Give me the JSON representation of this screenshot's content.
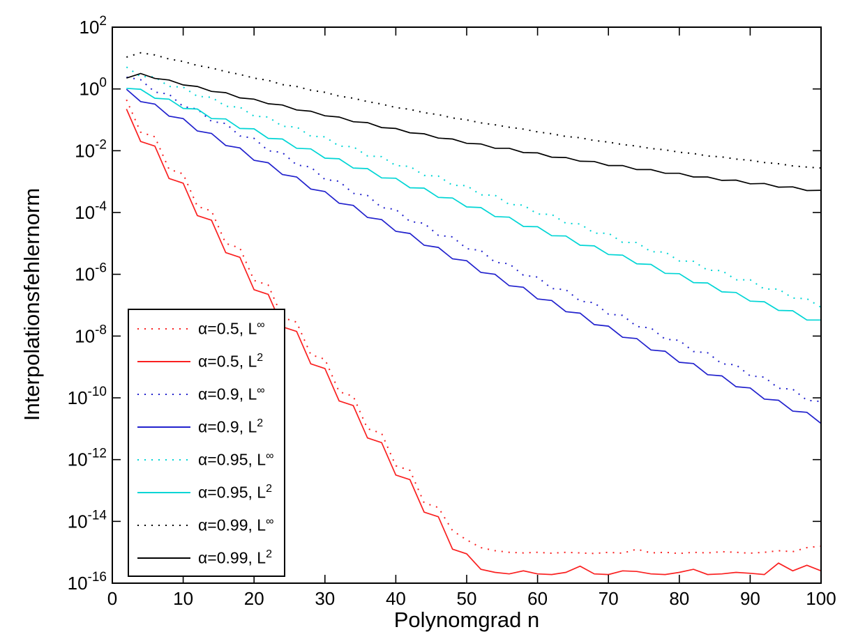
{
  "figure": {
    "background": "#ffffff",
    "axis_color": "#000000"
  },
  "chart_data": {
    "type": "line",
    "title": "",
    "xlabel": "Polynomgrad n",
    "ylabel": "Interpolationsfehlernorm",
    "x_range": [
      0,
      100
    ],
    "y_log_range": [
      -16,
      2
    ],
    "x_ticks": [
      0,
      10,
      20,
      30,
      40,
      50,
      60,
      70,
      80,
      90,
      100
    ],
    "y_tick_exponents": [
      2,
      0,
      -2,
      -4,
      -6,
      -8,
      -10,
      -12,
      -14,
      -16
    ],
    "grid": false,
    "legend_position": "lower-left",
    "n_start": 2,
    "n_step": 2,
    "series": [
      {
        "id": "alpha05-linf",
        "legend_base": "α=0.5, L",
        "legend_sup": "∞",
        "color": "#fa2020",
        "style": "dotted",
        "log10_values": [
          -0.35,
          -1.4,
          -1.55,
          -2.6,
          -2.75,
          -3.8,
          -3.95,
          -5.0,
          -5.15,
          -6.2,
          -6.35,
          -7.4,
          -7.55,
          -8.6,
          -8.75,
          -9.8,
          -9.95,
          -11.0,
          -11.15,
          -12.2,
          -12.35,
          -13.4,
          -13.55,
          -14.3,
          -14.6,
          -14.85,
          -14.95,
          -15.0,
          -15.02,
          -15.0,
          -15.03,
          -15.0,
          -15.02,
          -15.04,
          -15.0,
          -15.03,
          -14.9,
          -15.02,
          -15.0,
          -15.04,
          -15.0,
          -15.02,
          -14.98,
          -15.0,
          -15.03,
          -15.0,
          -14.95,
          -14.98,
          -14.85,
          -14.8
        ]
      },
      {
        "id": "alpha05-l2",
        "legend_base": "α=0.5, L",
        "legend_sup": "2",
        "color": "#fa2020",
        "style": "solid",
        "log10_values": [
          -0.65,
          -1.7,
          -1.85,
          -2.9,
          -3.05,
          -4.1,
          -4.25,
          -5.3,
          -5.45,
          -6.5,
          -6.65,
          -7.7,
          -7.85,
          -8.9,
          -9.05,
          -10.1,
          -10.25,
          -11.3,
          -11.45,
          -12.5,
          -12.65,
          -13.7,
          -13.85,
          -14.9,
          -15.05,
          -15.55,
          -15.65,
          -15.7,
          -15.6,
          -15.7,
          -15.72,
          -15.65,
          -15.45,
          -15.7,
          -15.72,
          -15.6,
          -15.62,
          -15.7,
          -15.72,
          -15.65,
          -15.55,
          -15.72,
          -15.7,
          -15.65,
          -15.68,
          -15.72,
          -15.35,
          -15.6,
          -15.42,
          -15.6
        ]
      },
      {
        "id": "alpha09-linf",
        "legend_base": "α=0.9, L",
        "legend_sup": "∞",
        "color": "#2121cd",
        "style": "dotted",
        "log10_values": [
          0.38,
          0.3,
          -0.1,
          -0.17,
          -0.57,
          -0.65,
          -1.05,
          -1.12,
          -1.52,
          -1.6,
          -2.0,
          -2.06,
          -2.46,
          -2.53,
          -2.93,
          -2.99,
          -3.38,
          -3.45,
          -3.84,
          -3.9,
          -4.29,
          -4.35,
          -4.74,
          -4.79,
          -5.17,
          -5.23,
          -5.61,
          -5.66,
          -6.03,
          -6.09,
          -6.46,
          -6.5,
          -6.87,
          -6.92,
          -7.29,
          -7.33,
          -7.69,
          -7.74,
          -8.1,
          -8.14,
          -8.5,
          -8.54,
          -8.9,
          -8.93,
          -9.29,
          -9.33,
          -9.69,
          -9.72,
          -10.08,
          -10.12
        ]
      },
      {
        "id": "alpha09-l2",
        "legend_base": "α=0.9, L",
        "legend_sup": "2",
        "color": "#2121cd",
        "style": "solid",
        "log10_values": [
          -0.01,
          -0.41,
          -0.49,
          -0.88,
          -0.96,
          -1.36,
          -1.44,
          -1.83,
          -1.91,
          -2.31,
          -2.39,
          -2.77,
          -2.85,
          -3.24,
          -3.32,
          -3.7,
          -3.77,
          -4.16,
          -4.23,
          -4.61,
          -4.68,
          -5.06,
          -5.13,
          -5.5,
          -5.56,
          -5.94,
          -6.0,
          -6.37,
          -6.42,
          -6.8,
          -6.85,
          -7.21,
          -7.26,
          -7.63,
          -7.68,
          -8.04,
          -8.08,
          -8.45,
          -8.49,
          -8.85,
          -8.89,
          -9.25,
          -9.29,
          -9.64,
          -9.68,
          -10.04,
          -10.08,
          -10.43,
          -10.47,
          -10.83
        ]
      },
      {
        "id": "alpha095-linf",
        "legend_base": "α=0.95, L",
        "legend_sup": "∞",
        "color": "#00d5d5",
        "style": "dotted",
        "log10_values": [
          0.71,
          0.4,
          0.39,
          0.08,
          0.06,
          -0.24,
          -0.27,
          -0.56,
          -0.59,
          -0.88,
          -0.91,
          -1.21,
          -1.23,
          -1.53,
          -1.55,
          -1.85,
          -1.87,
          -2.17,
          -2.19,
          -2.48,
          -2.51,
          -2.8,
          -2.82,
          -3.12,
          -3.13,
          -3.43,
          -3.44,
          -3.74,
          -3.76,
          -4.05,
          -4.06,
          -4.35,
          -4.37,
          -4.67,
          -4.67,
          -4.97,
          -4.97,
          -5.27,
          -5.28,
          -5.57,
          -5.58,
          -5.87,
          -5.88,
          -6.18,
          -6.18,
          -6.48,
          -6.48,
          -6.77,
          -6.79,
          -7.07
        ]
      },
      {
        "id": "alpha095-l2",
        "legend_base": "α=0.95, L",
        "legend_sup": "2",
        "color": "#00d5d5",
        "style": "solid",
        "log10_values": [
          0.02,
          -0.01,
          -0.3,
          -0.33,
          -0.63,
          -0.65,
          -0.96,
          -0.97,
          -1.28,
          -1.29,
          -1.6,
          -1.62,
          -1.92,
          -1.94,
          -2.24,
          -2.26,
          -2.56,
          -2.58,
          -2.88,
          -2.89,
          -3.2,
          -3.21,
          -3.51,
          -3.53,
          -3.82,
          -3.84,
          -4.13,
          -4.15,
          -4.45,
          -4.46,
          -4.75,
          -4.76,
          -5.06,
          -5.08,
          -5.36,
          -5.38,
          -5.66,
          -5.68,
          -5.97,
          -5.98,
          -6.27,
          -6.28,
          -6.57,
          -6.59,
          -6.87,
          -6.89,
          -7.17,
          -7.18,
          -7.48,
          -7.48
        ]
      },
      {
        "id": "alpha099-linf",
        "legend_base": "α=0.99, L",
        "legend_sup": "∞",
        "color": "#000000",
        "style": "dotted",
        "log10_values": [
          1.03,
          1.17,
          1.1,
          0.97,
          0.89,
          0.76,
          0.68,
          0.56,
          0.47,
          0.35,
          0.28,
          0.14,
          0.08,
          -0.04,
          -0.11,
          -0.23,
          -0.3,
          -0.41,
          -0.49,
          -0.6,
          -0.66,
          -0.77,
          -0.83,
          -0.94,
          -1.0,
          -1.1,
          -1.16,
          -1.24,
          -1.3,
          -1.39,
          -1.45,
          -1.54,
          -1.58,
          -1.67,
          -1.72,
          -1.8,
          -1.85,
          -1.93,
          -1.97,
          -2.05,
          -2.09,
          -2.17,
          -2.2,
          -2.27,
          -2.31,
          -2.38,
          -2.42,
          -2.49,
          -2.53,
          -2.56
        ]
      },
      {
        "id": "alpha099-l2",
        "legend_base": "α=0.99, L",
        "legend_sup": "2",
        "color": "#000000",
        "style": "solid",
        "log10_values": [
          0.35,
          0.5,
          0.34,
          0.29,
          0.13,
          0.08,
          -0.08,
          -0.12,
          -0.29,
          -0.33,
          -0.48,
          -0.52,
          -0.68,
          -0.72,
          -0.87,
          -0.91,
          -1.06,
          -1.09,
          -1.25,
          -1.28,
          -1.42,
          -1.45,
          -1.59,
          -1.62,
          -1.76,
          -1.78,
          -1.92,
          -1.92,
          -2.06,
          -2.07,
          -2.21,
          -2.22,
          -2.34,
          -2.35,
          -2.48,
          -2.48,
          -2.61,
          -2.61,
          -2.73,
          -2.73,
          -2.85,
          -2.85,
          -2.96,
          -2.95,
          -3.07,
          -3.06,
          -3.18,
          -3.17,
          -3.29,
          -3.28
        ]
      }
    ]
  }
}
